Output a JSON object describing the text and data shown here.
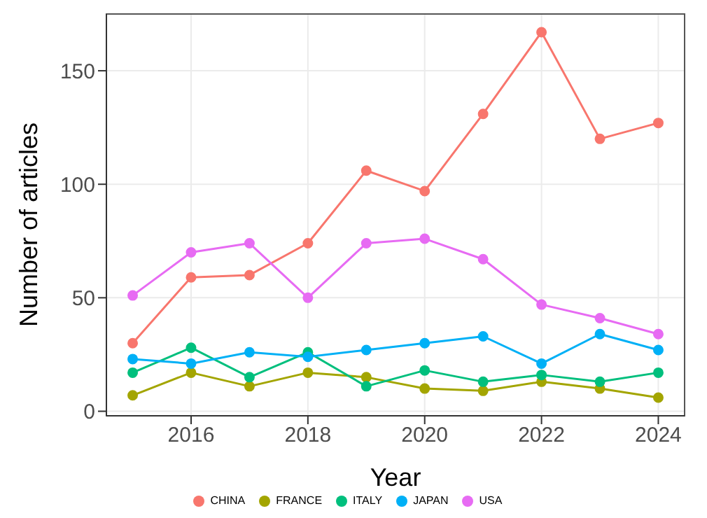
{
  "chart_data": {
    "type": "line",
    "xlabel": "Year",
    "ylabel": "Number of articles",
    "x": [
      2015,
      2016,
      2017,
      2018,
      2019,
      2020,
      2021,
      2022,
      2023,
      2024
    ],
    "series": [
      {
        "name": "CHINA",
        "color": "#f8766d",
        "values": [
          30,
          59,
          60,
          74,
          106,
          97,
          131,
          167,
          120,
          127
        ]
      },
      {
        "name": "FRANCE",
        "color": "#a3a500",
        "values": [
          7,
          17,
          11,
          17,
          15,
          10,
          9,
          13,
          10,
          6
        ]
      },
      {
        "name": "ITALY",
        "color": "#00bf7d",
        "values": [
          17,
          28,
          15,
          26,
          11,
          18,
          13,
          16,
          13,
          17
        ]
      },
      {
        "name": "JAPAN",
        "color": "#00b0f6",
        "values": [
          23,
          21,
          26,
          24,
          27,
          30,
          33,
          21,
          34,
          27
        ]
      },
      {
        "name": "USA",
        "color": "#e76bf3",
        "values": [
          51,
          70,
          74,
          50,
          74,
          76,
          67,
          47,
          41,
          34
        ]
      }
    ],
    "xlim": [
      2014.55,
      2024.45
    ],
    "xticks": [
      2016,
      2018,
      2020,
      2022,
      2024
    ],
    "ylim": [
      -2,
      175
    ],
    "yticks": [
      0,
      50,
      100,
      150
    ],
    "grid": true,
    "legend": "bottom",
    "marker": "circle",
    "line_style": "solid"
  }
}
